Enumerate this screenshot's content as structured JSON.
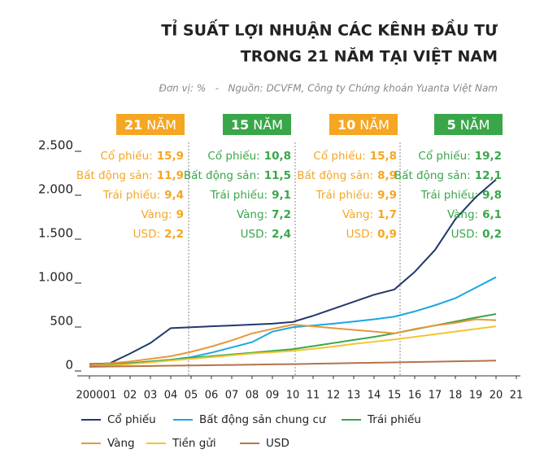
{
  "chart_data": {
    "type": "line",
    "title": [
      "TỈ SUẤT LỢI NHUẬN CÁC KÊNH ĐẦU TƯ",
      "TRONG 21 NĂM TẠI VIỆT NAM"
    ],
    "subtitle": "Đơn vị: %   -   Nguồn: DCVFM, Công ty Chứng khoán Yuanta Việt Nam",
    "x": [
      2000,
      2001,
      2002,
      2003,
      2004,
      2005,
      2006,
      2007,
      2008,
      2009,
      2010,
      2011,
      2012,
      2013,
      2014,
      2015,
      2016,
      2017,
      2018,
      2019,
      2020
    ],
    "xlim": [
      1999.6,
      2021.2
    ],
    "xticks": [
      {
        "value": 2000,
        "label": "2000"
      },
      {
        "value": 2001,
        "label": "01"
      },
      {
        "value": 2002,
        "label": "02"
      },
      {
        "value": 2003,
        "label": "03"
      },
      {
        "value": 2004,
        "label": "04"
      },
      {
        "value": 2005,
        "label": "05"
      },
      {
        "value": 2006,
        "label": "06"
      },
      {
        "value": 2007,
        "label": "07"
      },
      {
        "value": 2008,
        "label": "08"
      },
      {
        "value": 2009,
        "label": "09"
      },
      {
        "value": 2010,
        "label": "10"
      },
      {
        "value": 2011,
        "label": "11"
      },
      {
        "value": 2012,
        "label": "12"
      },
      {
        "value": 2013,
        "label": "13"
      },
      {
        "value": 2014,
        "label": "14"
      },
      {
        "value": 2015,
        "label": "15"
      },
      {
        "value": 2016,
        "label": "16"
      },
      {
        "value": 2017,
        "label": "17"
      },
      {
        "value": 2018,
        "label": "18"
      },
      {
        "value": 2019,
        "label": "19"
      },
      {
        "value": 2020,
        "label": "20"
      },
      {
        "value": 2021,
        "label": "21"
      }
    ],
    "ylim": [
      0,
      2500
    ],
    "yticks": [
      0,
      500,
      {
        "value": 1000,
        "label": "1.000"
      },
      {
        "value": 1500,
        "label": "1.500"
      },
      {
        "value": 2000,
        "label": "2.000"
      },
      {
        "value": 2500,
        "label": "2.500"
      }
    ],
    "series": [
      {
        "name": "Cổ phiếu",
        "color": "#1f3a6e",
        "values": [
          50,
          60,
          170,
          290,
          460,
          470,
          480,
          490,
          500,
          510,
          530,
          600,
          680,
          760,
          840,
          900,
          1100,
          1350,
          1700,
          1950,
          2150
        ]
      },
      {
        "name": "Bất động sản chung cư",
        "color": "#1aa7e0",
        "values": [
          40,
          50,
          60,
          80,
          100,
          130,
          180,
          240,
          300,
          420,
          470,
          490,
          510,
          535,
          560,
          590,
          650,
          720,
          800,
          920,
          1040
        ]
      },
      {
        "name": "Trái phiếu",
        "color": "#3aa64a",
        "values": [
          30,
          45,
          60,
          80,
          100,
          120,
          140,
          160,
          180,
          200,
          220,
          255,
          290,
          325,
          360,
          400,
          445,
          490,
          535,
          580,
          620
        ]
      },
      {
        "name": "Vàng",
        "color": "#e8973a",
        "values": [
          40,
          60,
          80,
          110,
          140,
          190,
          250,
          320,
          400,
          450,
          500,
          480,
          460,
          440,
          420,
          400,
          450,
          490,
          520,
          560,
          550
        ]
      },
      {
        "name": "Tiền gửi",
        "color": "#f5c431",
        "values": [
          20,
          35,
          50,
          70,
          90,
          110,
          130,
          150,
          170,
          185,
          200,
          225,
          250,
          280,
          305,
          330,
          360,
          390,
          420,
          450,
          480
        ]
      },
      {
        "name": "USD",
        "color": "#b5734a",
        "values": [
          20,
          23,
          26,
          29,
          32,
          35,
          38,
          41,
          44,
          47,
          50,
          54,
          58,
          62,
          66,
          70,
          74,
          78,
          82,
          86,
          90
        ]
      }
    ],
    "periods": [
      {
        "number": "21",
        "unit": "NĂM",
        "color": "#f5a623",
        "items": [
          {
            "label": "Cổ phiếu:",
            "value": 15.9,
            "value_label": "15,9"
          },
          {
            "label": "Bất động sản:",
            "value": 11.9,
            "value_label": "11,9"
          },
          {
            "label": "Trái phiếu:",
            "value": 9.4,
            "value_label": "9,4"
          },
          {
            "label": "Vàng:",
            "value": 9
          },
          {
            "label": "USD:",
            "value": 2.2,
            "value_label": "2,2"
          }
        ]
      },
      {
        "number": "15",
        "unit": "NĂM",
        "color": "#3aa64a",
        "items": [
          {
            "label": "Cổ phiếu:",
            "value": 10.8,
            "value_label": "10,8"
          },
          {
            "label": "Bất động sản:",
            "value": 11.5,
            "value_label": "11,5"
          },
          {
            "label": "Trái phiếu:",
            "value": 9.1,
            "value_label": "9,1"
          },
          {
            "label": "Vàng:",
            "value": 7.2,
            "value_label": "7,2"
          },
          {
            "label": "USD:",
            "value": 2.4,
            "value_label": "2,4"
          }
        ]
      },
      {
        "number": "10",
        "unit": "NĂM",
        "color": "#f5a623",
        "items": [
          {
            "label": "Cổ phiếu:",
            "value": 15.8,
            "value_label": "15,8"
          },
          {
            "label": "Bất động sản:",
            "value": 8.9,
            "value_label": "8,9"
          },
          {
            "label": "Trái phiếu:",
            "value": 9.9,
            "value_label": "9,9"
          },
          {
            "label": "Vàng:",
            "value": 1.7,
            "value_label": "1,7"
          },
          {
            "label": "USD:",
            "value": 0.9,
            "value_label": "0,9"
          }
        ]
      },
      {
        "number": "5",
        "unit": "NĂM",
        "color": "#3aa64a",
        "items": [
          {
            "label": "Cổ phiếu:",
            "value": 19.2,
            "value_label": "19,2"
          },
          {
            "label": "Bất động sản:",
            "value": 12.1,
            "value_label": "12,1"
          },
          {
            "label": "Trái phiếu:",
            "value": 9.8,
            "value_label": "9,8"
          },
          {
            "label": "Vàng:",
            "value": 6.1,
            "value_label": "6,1"
          },
          {
            "label": "USD:",
            "value": 0.2,
            "value_label": "0,2"
          }
        ]
      }
    ]
  }
}
